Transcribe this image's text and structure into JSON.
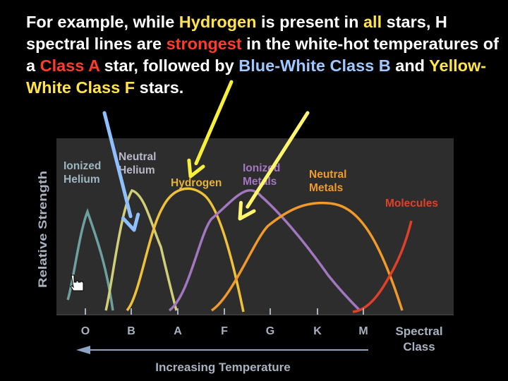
{
  "paragraph": [
    {
      "text": "For example, while ",
      "cls": ""
    },
    {
      "text": "Hydrogen",
      "cls": "hl-yellow"
    },
    {
      "text": " is present in ",
      "cls": ""
    },
    {
      "text": "all",
      "cls": "hl-yellow"
    },
    {
      "text": " stars, H spectral lines are ",
      "cls": ""
    },
    {
      "text": "strongest",
      "cls": "hl-red"
    },
    {
      "text": " in the white-hot temperatures of a ",
      "cls": ""
    },
    {
      "text": "Class A",
      "cls": "hl-red"
    },
    {
      "text": " star, followed by ",
      "cls": ""
    },
    {
      "text": "Blue-White Class B",
      "cls": "hl-blue"
    },
    {
      "text": " and ",
      "cls": ""
    },
    {
      "text": "Yellow-White Class F",
      "cls": "hl-yellow"
    },
    {
      "text": " stars.",
      "cls": ""
    }
  ],
  "figure": {
    "ylabel": "Relative Strength",
    "spectral_label_line1": "Spectral",
    "spectral_label_line2": "Class",
    "temperature_label": "Increasing Temperature",
    "classes": [
      "O",
      "B",
      "A",
      "F",
      "G",
      "K",
      "M"
    ],
    "curves": [
      {
        "name_lines": [
          "Ionized",
          "Helium"
        ],
        "color": "#6fa0a0",
        "text_color": "#9fb6c2",
        "peak_class": "O"
      },
      {
        "name_lines": [
          "Neutral",
          "Helium"
        ],
        "color": "#cfcf78",
        "text_color": "#b8b8c8",
        "peak_class": "B"
      },
      {
        "name_lines": [
          "Hydrogen"
        ],
        "color": "#f0c23a",
        "text_color": "#e5b33a",
        "peak_class": "A"
      },
      {
        "name_lines": [
          "Ionized",
          "Metals"
        ],
        "color": "#a277c0",
        "text_color": "#a277c0",
        "peak_class": "F"
      },
      {
        "name_lines": [
          "Neutral",
          "Metals"
        ],
        "color": "#f09a2a",
        "text_color": "#f09a2a",
        "peak_class": "K"
      },
      {
        "name_lines": [
          "Molecules"
        ],
        "color": "#e0402a",
        "text_color": "#e0402a",
        "peak_class": "M"
      }
    ],
    "arrow_colors": {
      "blue": "#8ec0ff",
      "yellow": "#f7ef3a",
      "pale_yellow": "#fff66e"
    }
  }
}
